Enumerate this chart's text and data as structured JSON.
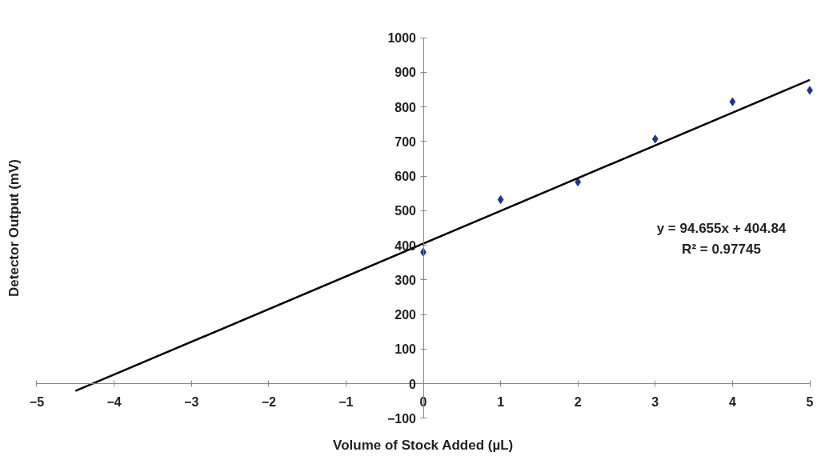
{
  "chart_data": {
    "type": "scatter",
    "xlabel": "Volume of Stock Added (µL)",
    "ylabel": "Detector Output (mV)",
    "series": [
      {
        "color": "#1f2f9f",
        "marker": "diamond",
        "x": [
          0,
          1,
          2,
          3,
          4,
          5
        ],
        "values": [
          380,
          532,
          583,
          707,
          815,
          848
        ]
      },
      {
        "type": "line",
        "color": "#000000",
        "marker": "none",
        "x": [
          -4.5,
          5
        ],
        "values": [
          -21,
          878
        ]
      }
    ],
    "annotations": [
      "y = 94.655x + 404.84",
      "R² = 0.97745"
    ],
    "xlim": [
      -5,
      5
    ],
    "xticks": [
      -5,
      -4,
      -3,
      -2,
      -1,
      0,
      1,
      2,
      3,
      4,
      5
    ],
    "ylim": [
      -100,
      1000
    ],
    "yticks": [
      -100,
      0,
      100,
      200,
      300,
      400,
      500,
      600,
      700,
      800,
      900,
      1000
    ],
    "grid": false
  }
}
